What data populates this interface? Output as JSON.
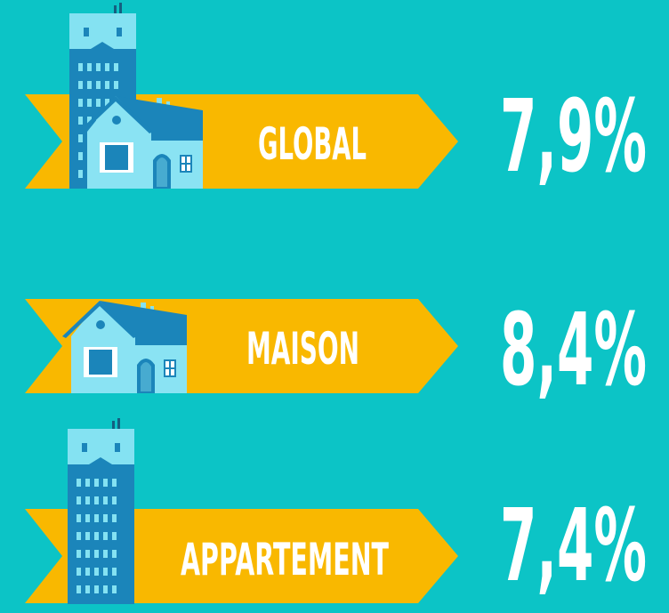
{
  "items": [
    {
      "label": "GLOBAL",
      "value": "7,9%"
    },
    {
      "label": "MAISON",
      "value": "8,4%"
    },
    {
      "label": "APPARTEMENT",
      "value": "7,4%"
    }
  ]
}
